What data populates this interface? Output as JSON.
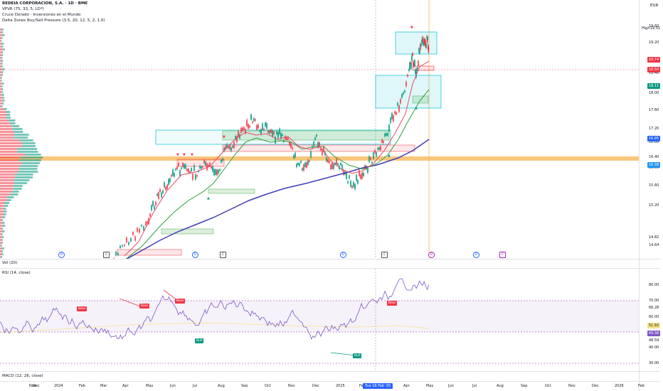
{
  "header": {
    "symbol_line": "REDEIA CORPORACION, S.A. · 1D · BME",
    "vpvr": "VPVR (75, 33, 5, LD*)",
    "cruce": "Cruce Dorado - Inversiones en el Mundo",
    "delta": "Delta Zones Buy/Sell Pressure (3.5, 20, 12, 5, 2, 1.0)",
    "currency": "EUR"
  },
  "price_axis": {
    "labels": [
      "19.60",
      "19.20",
      "18.80",
      "18.40",
      "18.00",
      "17.60",
      "17.20",
      "16.80",
      "16.40",
      "16.00",
      "15.60",
      "15.20",
      "14.82",
      "14.64"
    ],
    "high_label": "High",
    "high_value": "19.51",
    "tags": [
      {
        "text": "18.74",
        "color": "#f23645"
      },
      {
        "text": "18.50",
        "color": "#f23645"
      },
      {
        "text": "18.11",
        "color": "#089981"
      },
      {
        "text": "16.95",
        "color": "#2962ff"
      },
      {
        "text": "16.38",
        "color": "#2196f3"
      }
    ]
  },
  "volume_legend": "Vol (20)",
  "rsi": {
    "legend": "RSI (14, close)",
    "labels": [
      "80.00",
      "70.00",
      "66.28",
      "60.00",
      "48.59",
      "40.00",
      "30.00"
    ],
    "tag_value": "51.92",
    "tag_value2": "49.38",
    "bubbles": [
      {
        "text": "Bear",
        "color": "#f23645"
      },
      {
        "text": "Bear",
        "color": "#f23645"
      },
      {
        "text": "Bear",
        "color": "#f23645"
      },
      {
        "text": "Bear",
        "color": "#f23645"
      },
      {
        "text": "Bull",
        "color": "#089981"
      },
      {
        "text": "Bull",
        "color": "#089981"
      }
    ]
  },
  "macd": {
    "legend": "MACD (12, 26, close)"
  },
  "time_axis": {
    "labels": [
      "Nov",
      "Dec",
      "2024",
      "Feb",
      "Mar",
      "Apr",
      "May",
      "Jun",
      "Jul",
      "Aug",
      "Sep",
      "Oct",
      "Nov",
      "Dec",
      "2025",
      "Feb",
      "Apr",
      "May",
      "Jun",
      "Jul",
      "Aug",
      "Sep",
      "Oct",
      "Nov",
      "Dec",
      "2026",
      "Feb"
    ],
    "crosshair_date": "Tue 18 Feb '25"
  },
  "events": [
    {
      "text": "D"
    },
    {
      "text": "E"
    },
    {
      "text": "D"
    },
    {
      "text": "E"
    },
    {
      "text": "D"
    },
    {
      "text": "E"
    },
    {
      "text": "D"
    },
    {
      "text": "D"
    },
    {
      "text": "E"
    }
  ],
  "colors": {
    "bull": "#089981",
    "bear": "#f23645",
    "ema_slow": "#3f3cbb",
    "ema_mid": "#2e9e3e",
    "ema_fast": "#e64a6a",
    "zone": "#00bcd4",
    "poc": "#f7b450"
  }
}
